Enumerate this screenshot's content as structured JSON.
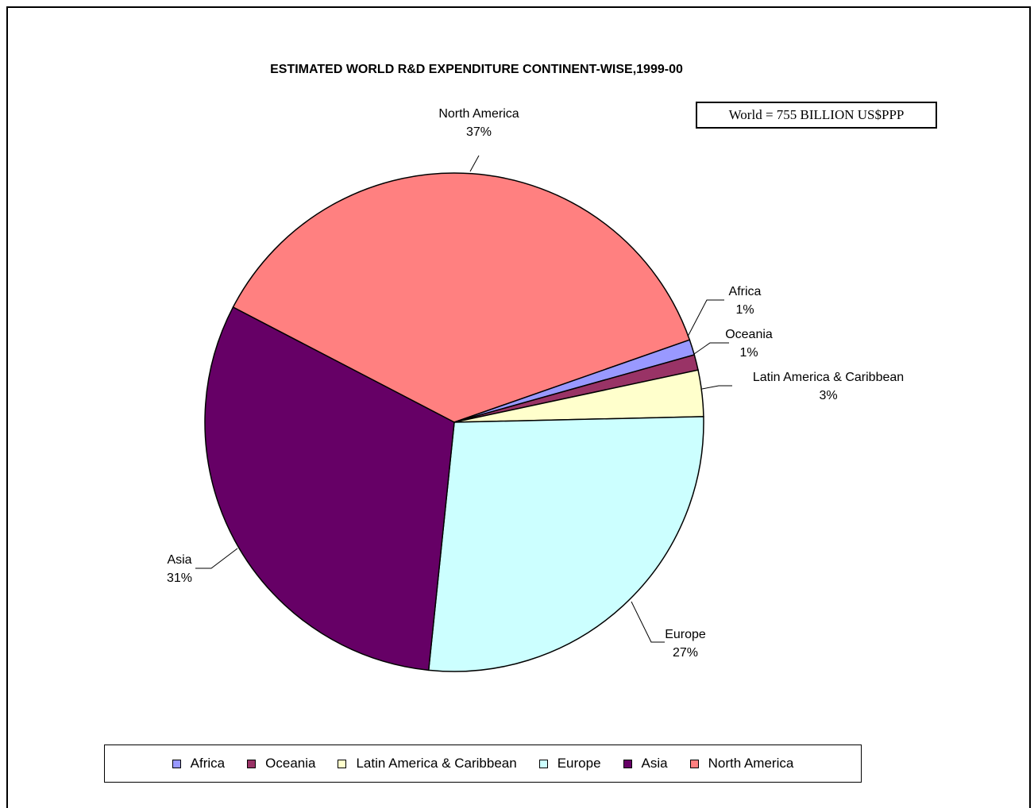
{
  "chart_data": {
    "type": "pie",
    "title": "ESTIMATED WORLD R&D EXPENDITURE CONTINENT-WISE,1999-00",
    "annotation": "World = 755 BILLION US$PPP",
    "slices": [
      {
        "name": "North America",
        "label": "37%",
        "value": 37,
        "color": "#ff8080"
      },
      {
        "name": "Africa",
        "label": "1%",
        "value": 1,
        "color": "#9999ff"
      },
      {
        "name": "Oceania",
        "label": "1%",
        "value": 1,
        "color": "#993366"
      },
      {
        "name": "Latin America & Caribbean",
        "label": "3%",
        "value": 3,
        "color": "#ffffcc"
      },
      {
        "name": "Europe",
        "label": "27%",
        "value": 27,
        "color": "#ccffff"
      },
      {
        "name": "Asia",
        "label": "31%",
        "value": 31,
        "color": "#660066"
      }
    ],
    "legend": [
      "Africa",
      "Oceania",
      "Latin America & Caribbean",
      "Europe",
      "Asia",
      "North America"
    ],
    "legend_position": "bottom"
  }
}
